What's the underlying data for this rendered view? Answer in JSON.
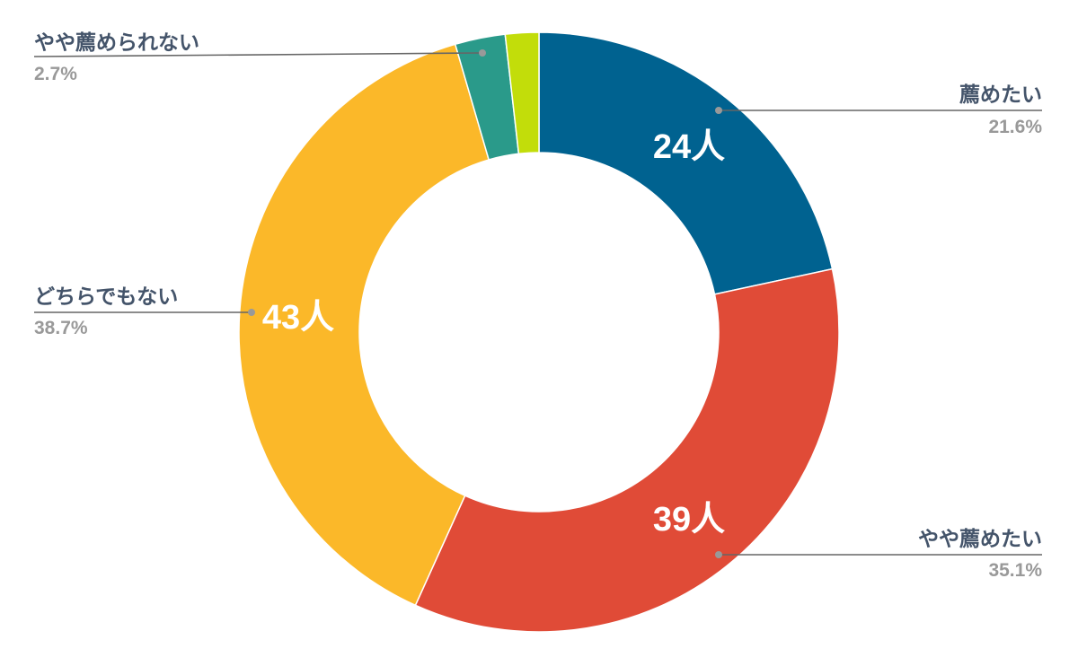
{
  "chart_data": {
    "type": "pie",
    "donut": true,
    "legend": "outside-labels",
    "slices": [
      {
        "label": "薦めたい",
        "percent": "21.6%",
        "value": 24,
        "value_label": "24人",
        "color": "#006290"
      },
      {
        "label": "やや薦めたい",
        "percent": "35.1%",
        "value": 39,
        "value_label": "39人",
        "color": "#e04b37"
      },
      {
        "label": "どちらでもない",
        "percent": "38.7%",
        "value": 43,
        "value_label": "43人",
        "color": "#fbb829"
      },
      {
        "label": "やや薦められない",
        "percent": "2.7%",
        "value": 3,
        "value_label": "",
        "color": "#2a9a8a"
      },
      {
        "label": "",
        "percent": "",
        "value": 2,
        "value_label": "",
        "color": "#c2dd0a"
      }
    ]
  }
}
